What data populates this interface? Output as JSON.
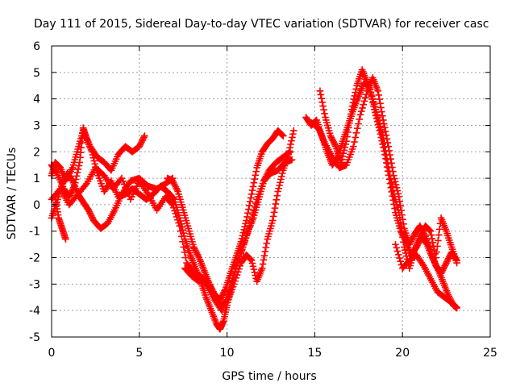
{
  "chart_data": {
    "type": "scatter",
    "title": "Day 111 of 2015, Sidereal Day-to-day VTEC variation (SDTVAR) for receiver casc",
    "xlabel": "GPS time / hours",
    "ylabel": "SDTVAR / TECUs",
    "xlim": [
      0,
      25
    ],
    "ylim": [
      -5,
      6
    ],
    "x_ticks": [
      0,
      5,
      10,
      15,
      20,
      25
    ],
    "y_ticks": [
      -5,
      -4,
      -3,
      -2,
      -1,
      0,
      1,
      2,
      3,
      4,
      5,
      6
    ],
    "grid": true,
    "marker": "plus",
    "marker_color": "#ff0000",
    "series": [
      {
        "name": "trace-1",
        "x": [
          0.0,
          0.3,
          0.7,
          1.0,
          1.3,
          1.6,
          1.8,
          2.0,
          2.3,
          2.6,
          3.0,
          3.4,
          3.8,
          4.2,
          4.6,
          5.0,
          5.4,
          5.8,
          6.2,
          6.6,
          7.0,
          7.3,
          7.6,
          7.9,
          8.2,
          8.5,
          8.8,
          9.1,
          9.4,
          9.6,
          9.8,
          10.0,
          10.3,
          10.6,
          10.9,
          11.2,
          11.5,
          11.8,
          12.1,
          12.4,
          12.8,
          13.2,
          13.6
        ],
        "y": [
          1.5,
          1.2,
          0.6,
          0.3,
          0.7,
          1.6,
          2.9,
          2.5,
          2.0,
          1.2,
          0.5,
          0.9,
          0.3,
          0.4,
          0.6,
          0.4,
          0.2,
          0.4,
          0.7,
          0.5,
          0.2,
          -0.5,
          -1.3,
          -1.9,
          -2.4,
          -2.9,
          -3.5,
          -4.0,
          -4.5,
          -4.7,
          -4.4,
          -3.8,
          -3.0,
          -2.2,
          -1.6,
          -1.0,
          -0.5,
          0.2,
          0.9,
          1.3,
          1.6,
          1.8,
          2.0
        ]
      },
      {
        "name": "trace-2",
        "x": [
          0.0,
          0.2,
          0.5,
          0.8,
          1.2,
          1.5,
          1.8,
          2.2,
          2.6,
          3.0,
          3.4,
          3.8,
          4.2,
          4.6,
          5.0,
          5.3
        ],
        "y": [
          1.1,
          1.6,
          1.4,
          0.9,
          1.4,
          2.1,
          2.8,
          2.2,
          1.8,
          1.6,
          1.3,
          1.9,
          2.2,
          2.0,
          2.2,
          2.6
        ]
      },
      {
        "name": "trace-3",
        "x": [
          0.0,
          0.3,
          0.6,
          0.9,
          1.2,
          1.5,
          1.8,
          2.1,
          2.4,
          2.8,
          3.2,
          3.6,
          4.0,
          4.5,
          5.0,
          5.5,
          6.0,
          6.5,
          6.9
        ],
        "y": [
          -0.5,
          0.1,
          0.8,
          1.2,
          0.9,
          0.4,
          0.1,
          -0.2,
          -0.6,
          -0.9,
          -0.7,
          -0.2,
          0.4,
          0.9,
          1.0,
          0.7,
          0.6,
          0.8,
          1.0
        ]
      },
      {
        "name": "trace-4",
        "x": [
          0.2,
          0.4,
          0.6,
          0.8
        ],
        "y": [
          0.3,
          -0.5,
          -0.9,
          -1.3
        ]
      },
      {
        "name": "trace-5",
        "x": [
          0.0,
          0.5,
          1.0,
          1.5,
          2.0,
          2.5,
          3.0,
          3.5,
          4.0,
          4.5,
          5.0,
          5.5,
          6.0,
          6.5,
          6.9,
          7.3,
          7.7,
          8.1,
          8.5,
          8.9,
          9.3,
          9.7,
          10.1,
          10.5,
          10.9,
          11.3,
          11.7,
          12.1,
          12.5,
          12.9,
          13.3,
          13.7
        ],
        "y": [
          0.2,
          0.6,
          0.0,
          0.4,
          0.8,
          1.4,
          1.1,
          0.6,
          1.0,
          0.2,
          0.9,
          0.4,
          -0.2,
          0.3,
          0.0,
          -0.8,
          -2.2,
          -2.6,
          -2.7,
          -3.1,
          -3.6,
          -4.0,
          -3.3,
          -2.4,
          -1.6,
          -0.8,
          0.2,
          0.9,
          1.2,
          1.3,
          1.6,
          1.7
        ]
      },
      {
        "name": "trace-6",
        "x": [
          6.6,
          6.9,
          7.2,
          7.5,
          7.8,
          8.1,
          8.4,
          8.7,
          9.0,
          9.3,
          9.6,
          9.9,
          10.2,
          10.5,
          10.8,
          11.1,
          11.4,
          11.7,
          12.0,
          12.3,
          12.6,
          12.9,
          13.2
        ],
        "y": [
          1.0,
          0.9,
          0.5,
          -0.2,
          -0.9,
          -1.6,
          -2.0,
          -2.5,
          -3.0,
          -3.4,
          -3.6,
          -3.2,
          -2.6,
          -2.0,
          -1.4,
          -0.6,
          0.4,
          1.4,
          2.0,
          2.3,
          2.5,
          2.8,
          2.6
        ]
      },
      {
        "name": "trace-7",
        "x": [
          7.6,
          8.0,
          8.4,
          8.8,
          9.2,
          9.6,
          10.0,
          10.4,
          10.8,
          11.1,
          11.4,
          11.7,
          12.0,
          12.3,
          12.6,
          12.9,
          13.2,
          13.5,
          13.8
        ],
        "y": [
          -2.4,
          -2.7,
          -2.9,
          -2.8,
          -3.3,
          -3.8,
          -3.7,
          -3.0,
          -2.2,
          -1.9,
          -2.1,
          -2.9,
          -2.4,
          -1.3,
          -0.6,
          0.5,
          1.3,
          1.9,
          2.8
        ]
      },
      {
        "name": "trace-8",
        "x": [
          14.5,
          14.8,
          15.1,
          15.4,
          15.7,
          16.0,
          16.3,
          16.6,
          16.9,
          17.2,
          17.5,
          17.8,
          18.1,
          18.4,
          18.7,
          19.0,
          19.3,
          19.6,
          19.9,
          20.2,
          20.5,
          20.8,
          21.1,
          21.4,
          21.7,
          22.0,
          22.3,
          22.6,
          22.9,
          23.1
        ],
        "y": [
          3.3,
          3.0,
          3.2,
          2.6,
          2.0,
          1.5,
          1.8,
          2.4,
          3.0,
          3.6,
          4.1,
          4.6,
          4.5,
          3.6,
          2.8,
          1.9,
          0.8,
          -0.3,
          -1.0,
          -1.4,
          -1.9,
          -1.6,
          -1.2,
          -1.5,
          -2.0,
          -2.4,
          -2.9,
          -3.4,
          -3.8,
          -3.9
        ]
      },
      {
        "name": "trace-9",
        "x": [
          14.8,
          15.2,
          15.6,
          16.0,
          16.4,
          16.8,
          17.2,
          17.6,
          18.0,
          18.3,
          18.6,
          18.9,
          19.2,
          19.5,
          19.8,
          20.1,
          20.4,
          20.7,
          21.0,
          21.3,
          21.6,
          21.9,
          22.2,
          22.5,
          22.8,
          23.1
        ],
        "y": [
          3.1,
          2.9,
          2.3,
          1.8,
          1.4,
          1.5,
          2.2,
          3.4,
          4.3,
          4.8,
          4.3,
          3.2,
          2.2,
          1.1,
          0.3,
          -0.9,
          -1.5,
          -1.1,
          -0.8,
          -1.2,
          -1.7,
          -2.3,
          -2.6,
          -2.2,
          -1.8,
          -2.1
        ]
      },
      {
        "name": "trace-10",
        "x": [
          15.3,
          15.6,
          15.9,
          16.2,
          16.5,
          16.8,
          17.1,
          17.4,
          17.7,
          18.0,
          18.3,
          18.6,
          18.9,
          19.2,
          19.5,
          19.8,
          20.1,
          20.4,
          20.7,
          21.0,
          21.3,
          21.6,
          21.9,
          22.2,
          22.5,
          22.8,
          23.1
        ],
        "y": [
          4.3,
          3.3,
          2.6,
          2.2,
          1.6,
          2.4,
          3.6,
          4.5,
          5.1,
          4.6,
          4.0,
          3.3,
          2.5,
          1.4,
          0.4,
          -0.3,
          -1.6,
          -2.4,
          -1.7,
          -1.2,
          -0.8,
          -1.0,
          -2.0,
          -0.5,
          -1.0,
          -1.6,
          -2.2
        ]
      },
      {
        "name": "trace-11",
        "x": [
          19.6,
          20.0,
          20.4,
          20.8,
          21.2,
          21.6,
          22.0,
          22.4,
          22.8,
          23.1
        ],
        "y": [
          -1.5,
          -2.4,
          -2.1,
          -1.9,
          -2.3,
          -2.8,
          -3.3,
          -3.5,
          -3.7,
          -3.9
        ]
      }
    ]
  }
}
